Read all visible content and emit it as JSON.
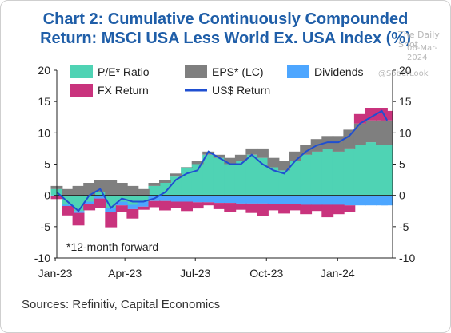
{
  "title_line1": "Chart 2: Cumulative Continuously Compounded",
  "title_line2": "Return: MSCI USA Less World Ex. USA Index (%)",
  "watermark": {
    "site": "The Daily Shot",
    "date": "06-Mar-2024",
    "handle": "@SoberLook"
  },
  "source": "Sources: Refinitiv, Capital Economics",
  "note": "*12-month forward",
  "colors": {
    "pe": "#4fd3b4",
    "eps": "#7f7f7f",
    "div": "#4da6ff",
    "fx": "#c9337d",
    "usd": "#1f4fd1"
  },
  "chart_data": {
    "type": "area",
    "title": "Chart 2: Cumulative Continuously Compounded Return: MSCI USA Less World Ex. USA Index (%)",
    "ylim": [
      -10,
      20
    ],
    "yticks": [
      -10,
      -5,
      0,
      5,
      10,
      15,
      20
    ],
    "xticks": [
      "Jan-23",
      "Apr-23",
      "Jul-23",
      "Oct-23",
      "Jan-24"
    ],
    "grid": false,
    "legend_position": "top",
    "x": [
      "2023-01-03",
      "2023-01-17",
      "2023-01-31",
      "2023-02-14",
      "2023-02-28",
      "2023-03-14",
      "2023-03-28",
      "2023-04-11",
      "2023-04-25",
      "2023-05-09",
      "2023-05-23",
      "2023-06-06",
      "2023-06-20",
      "2023-07-04",
      "2023-07-18",
      "2023-08-01",
      "2023-08-15",
      "2023-08-29",
      "2023-09-12",
      "2023-09-26",
      "2023-10-10",
      "2023-10-24",
      "2023-11-07",
      "2023-11-21",
      "2023-12-05",
      "2023-12-19",
      "2024-01-02",
      "2024-01-16",
      "2024-01-30",
      "2024-02-13",
      "2024-02-27",
      "2024-03-05"
    ],
    "series": [
      {
        "name": "P/E* Ratio",
        "type": "stacked-area",
        "values": [
          1.0,
          -1.5,
          -2.5,
          -1.0,
          0.5,
          -2.0,
          -1.0,
          -1.5,
          -1.0,
          1.5,
          2.0,
          3.0,
          4.5,
          5.0,
          6.5,
          6.0,
          5.0,
          5.5,
          6.5,
          6.0,
          4.5,
          4.0,
          5.5,
          6.5,
          7.0,
          7.5,
          7.0,
          7.5,
          8.0,
          8.5,
          8.0,
          8.0
        ]
      },
      {
        "name": "EPS* (LC)",
        "type": "stacked-area",
        "values": [
          0.5,
          1.0,
          1.5,
          2.0,
          2.0,
          2.5,
          2.0,
          1.5,
          1.0,
          0.5,
          0.5,
          0.5,
          0.0,
          0.5,
          0.5,
          0.5,
          1.0,
          1.0,
          1.0,
          1.5,
          1.5,
          1.5,
          1.5,
          1.5,
          2.0,
          2.0,
          2.5,
          3.0,
          3.5,
          3.5,
          4.0,
          4.0
        ]
      },
      {
        "name": "Dividends",
        "type": "stacked-area",
        "values": [
          -0.1,
          -0.2,
          -0.3,
          -0.4,
          -0.5,
          -0.6,
          -0.6,
          -0.7,
          -0.8,
          -0.9,
          -0.9,
          -1.0,
          -1.0,
          -1.1,
          -1.1,
          -1.2,
          -1.2,
          -1.3,
          -1.3,
          -1.3,
          -1.4,
          -1.4,
          -1.4,
          -1.5,
          -1.5,
          -1.5,
          -1.5,
          -1.6,
          -1.6,
          -1.6,
          -1.6,
          -1.6
        ]
      },
      {
        "name": "FX Return",
        "type": "stacked-area",
        "values": [
          -0.5,
          -1.5,
          -2.0,
          -1.0,
          -1.5,
          -2.5,
          -1.0,
          -1.5,
          -0.5,
          -1.0,
          -1.5,
          -1.0,
          -1.5,
          -1.0,
          -0.5,
          -1.0,
          -1.5,
          -1.0,
          -1.5,
          -2.0,
          -1.0,
          -1.5,
          -1.0,
          -1.5,
          -1.0,
          -2.0,
          -1.5,
          -1.0,
          1.5,
          2.0,
          2.0,
          1.5
        ]
      },
      {
        "name": "US$ Return",
        "type": "line",
        "values": [
          0.5,
          -1.0,
          -2.5,
          0.0,
          1.0,
          -2.0,
          -0.5,
          -1.0,
          -1.0,
          -0.5,
          0.5,
          2.5,
          3.5,
          4.0,
          7.0,
          6.0,
          5.0,
          5.0,
          6.5,
          5.0,
          4.0,
          3.5,
          5.5,
          7.0,
          8.0,
          8.5,
          8.5,
          9.5,
          11.5,
          12.5,
          13.5,
          12.0
        ]
      }
    ]
  }
}
